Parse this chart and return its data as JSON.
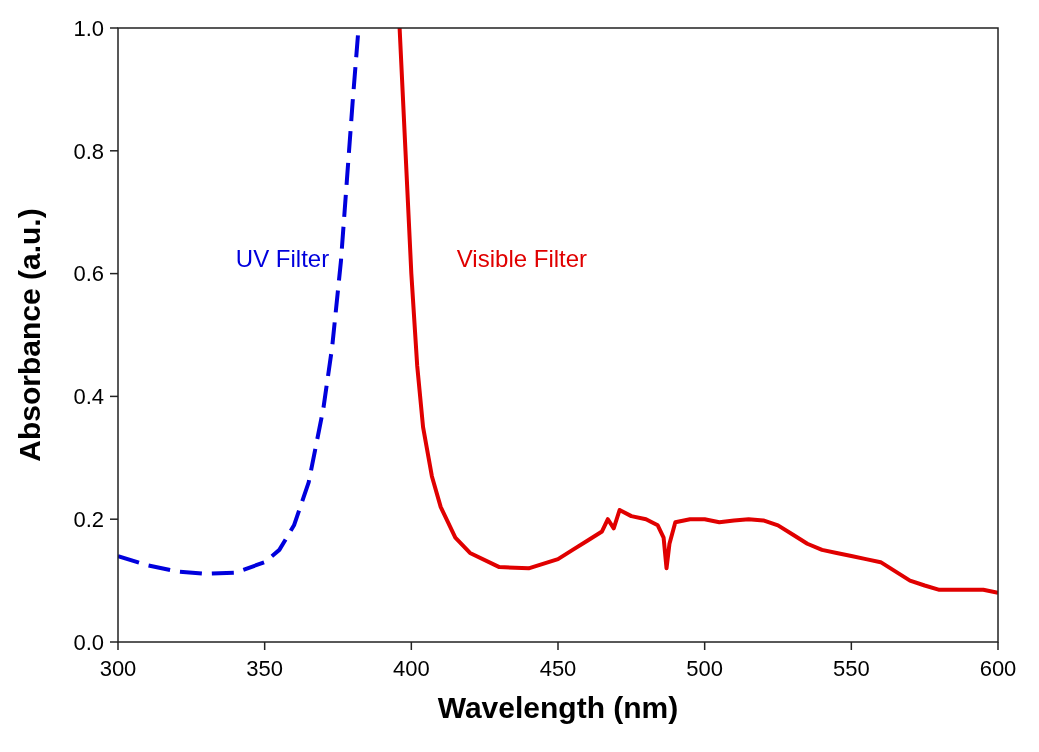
{
  "chart_data": {
    "type": "line",
    "xlabel": "Wavelength (nm)",
    "ylabel": "Absorbance (a.u.)",
    "xlim": [
      300,
      600
    ],
    "xticks": [
      300,
      350,
      400,
      450,
      500,
      550,
      600
    ],
    "ylim": [
      0,
      1
    ],
    "yticks": [
      {
        "value": 0,
        "label": "0.0"
      },
      {
        "value": 0.2,
        "label": "0.2"
      },
      {
        "value": 0.4,
        "label": "0.4"
      },
      {
        "value": 0.6,
        "label": "0.6"
      },
      {
        "value": 0.8,
        "label": "0.8"
      },
      {
        "value": 1,
        "label": "1.0"
      }
    ],
    "grid": false,
    "legend": false,
    "marker": "none",
    "series": [
      {
        "name": "UV Filter",
        "color": "#0000dd",
        "line_style": "dashed",
        "x": [
          300,
          310,
          320,
          330,
          340,
          350,
          355,
          360,
          365,
          370,
          373,
          376,
          378,
          380,
          382
        ],
        "values": [
          0.14,
          0.125,
          0.115,
          0.111,
          0.113,
          0.13,
          0.15,
          0.19,
          0.26,
          0.38,
          0.48,
          0.62,
          0.75,
          0.88,
          1.0
        ]
      },
      {
        "name": "Visible Filter",
        "color": "#e00000",
        "line_style": "solid",
        "x": [
          396,
          398,
          400,
          402,
          404,
          407,
          410,
          415,
          420,
          430,
          440,
          450,
          455,
          460,
          465,
          467,
          469,
          471,
          475,
          480,
          484,
          486,
          487,
          488,
          490,
          495,
          500,
          505,
          510,
          515,
          520,
          525,
          530,
          535,
          540,
          545,
          550,
          555,
          560,
          565,
          570,
          575,
          580,
          585,
          590,
          595,
          600
        ],
        "values": [
          1.0,
          0.8,
          0.6,
          0.45,
          0.35,
          0.27,
          0.22,
          0.17,
          0.145,
          0.122,
          0.12,
          0.135,
          0.15,
          0.165,
          0.18,
          0.2,
          0.185,
          0.215,
          0.205,
          0.2,
          0.19,
          0.17,
          0.12,
          0.16,
          0.195,
          0.2,
          0.2,
          0.195,
          0.198,
          0.2,
          0.198,
          0.19,
          0.175,
          0.16,
          0.15,
          0.145,
          0.14,
          0.135,
          0.13,
          0.115,
          0.1,
          0.092,
          0.085,
          0.085,
          0.085,
          0.085,
          0.08
        ]
      }
    ]
  }
}
